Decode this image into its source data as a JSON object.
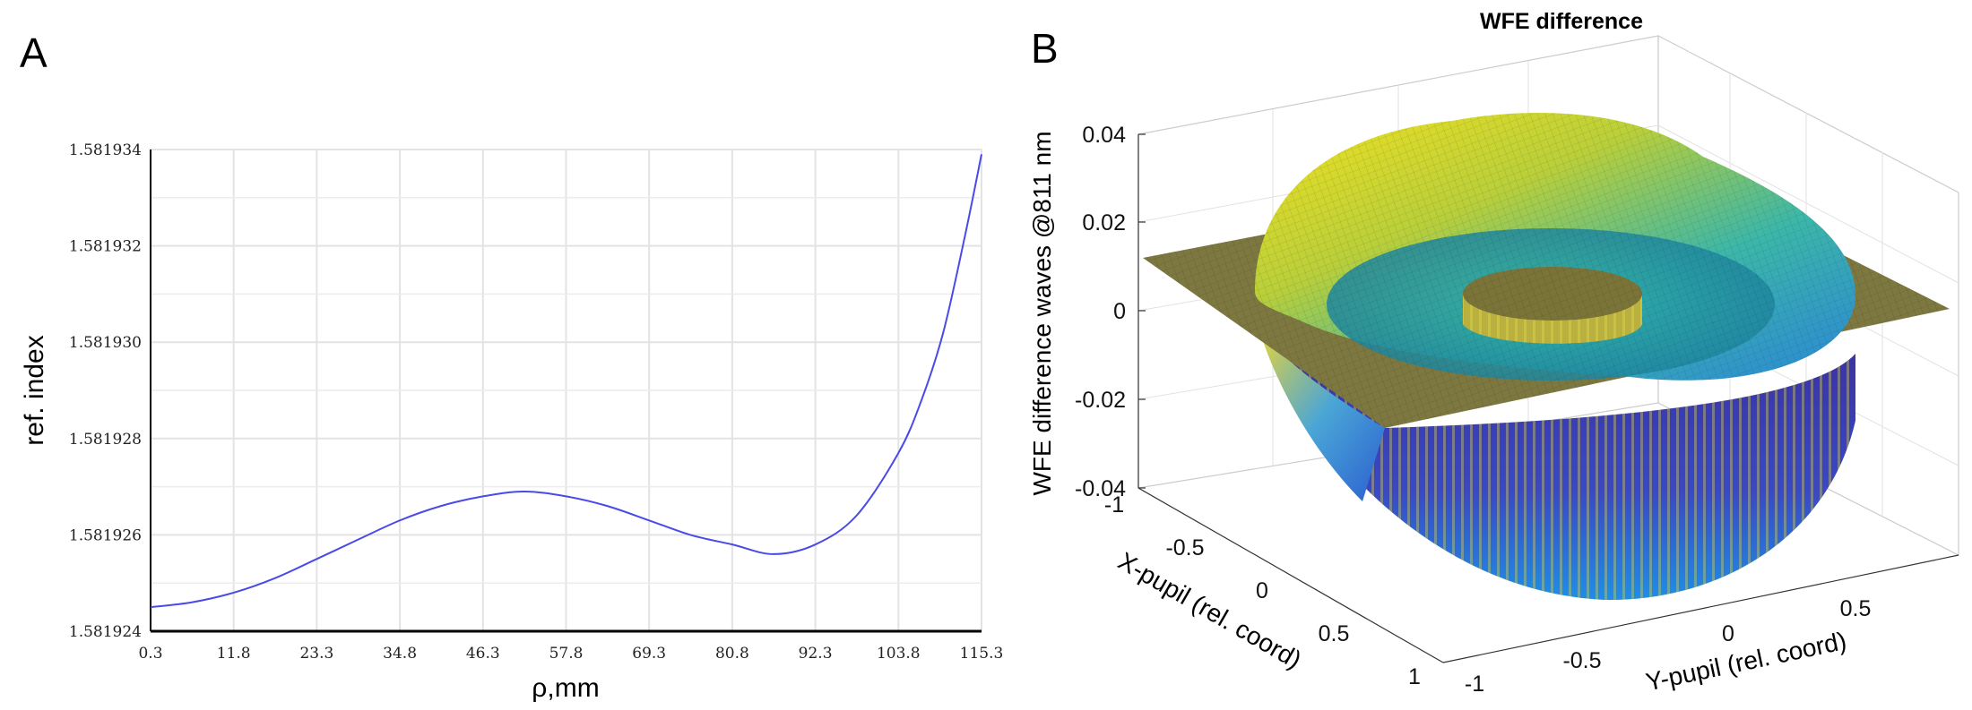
{
  "panels": {
    "a_label": "A",
    "b_label": "B"
  },
  "chart_data": [
    {
      "type": "line",
      "panel": "A",
      "title": "",
      "xlabel": "ρ,mm",
      "ylabel": "ref. index",
      "xlim": [
        0.3,
        115.3
      ],
      "ylim": [
        1.581924,
        1.581934
      ],
      "x_ticks": [
        "0.3",
        "11.8",
        "23.3",
        "34.8",
        "46.3",
        "57.8",
        "69.3",
        "80.8",
        "92.3",
        "103.8",
        "115.3"
      ],
      "y_ticks": [
        "1.581924",
        "1.581926",
        "1.581928",
        "1.581930",
        "1.581932",
        "1.581934"
      ],
      "grid": true,
      "line_color": "#4a4ae8",
      "series": [
        {
          "name": "ref. index",
          "x": [
            0.3,
            6,
            11.8,
            17.5,
            23.3,
            29,
            34.8,
            40.5,
            46.3,
            52,
            57.8,
            63.5,
            69.3,
            75,
            80.8,
            86.5,
            92.3,
            98,
            103.8,
            107,
            110,
            113,
            115.3
          ],
          "y": [
            1.5819245,
            1.5819246,
            1.5819248,
            1.5819251,
            1.5819255,
            1.5819259,
            1.5819263,
            1.5819266,
            1.5819268,
            1.5819269,
            1.5819268,
            1.5819266,
            1.5819263,
            1.581926,
            1.5819258,
            1.5819256,
            1.5819258,
            1.5819264,
            1.5819277,
            1.5819288,
            1.5819302,
            1.5819322,
            1.5819339
          ]
        }
      ]
    },
    {
      "type": "surface",
      "panel": "B",
      "title": "WFE difference",
      "zlabel": "WFE difference waves @811 nm",
      "xlabel": "X-pupil (rel. coord)",
      "ylabel": "Y-pupil (rel. coord)",
      "z_ticks": [
        "0.04",
        "0.02",
        "0",
        "-0.02",
        "-0.04"
      ],
      "x_ticks": [
        "-1",
        "-0.5",
        "0",
        "0.5",
        "1"
      ],
      "y_ticks": [
        "-1",
        "-0.5",
        "0",
        "0.5"
      ],
      "zlim": [
        -0.04,
        0.04
      ],
      "colormap": [
        "#3e26a8",
        "#2e7ff5",
        "#1eb8b4",
        "#8cc63e",
        "#f9e61b"
      ]
    }
  ]
}
